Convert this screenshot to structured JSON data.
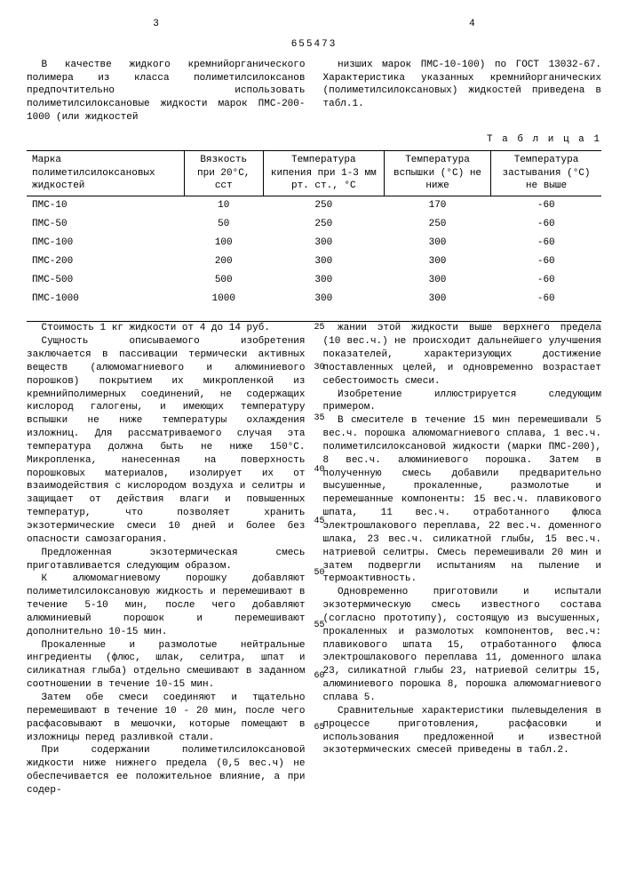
{
  "header": {
    "page_left": "3",
    "doc_number": "655473",
    "page_right": "4"
  },
  "intro_left": "В качестве жидкого кремнийорганического полимера из класса полиметилсилоксанов предпочтительно использовать полиметилсилоксановые жидкости марок ПМС-200-1000 (или жидкостей",
  "intro_right": "низших марок ПМС-10-100) по ГОСТ 13032-67. Характеристика указанных кремнийорганических (полиметилсилоксановых) жидкостей приведена в табл.1.",
  "table_caption": "Т а б л и ц а 1",
  "table": {
    "headers": [
      "Марка полиметилсилоксановых жидкостей",
      "Вязкость при 20°С, сст",
      "Температура кипения при 1-3 мм рт. ст., °С",
      "Температура вспышки (°С) не ниже",
      "Температура застывания (°С) не выше"
    ],
    "rows": [
      [
        "ПМС-10",
        "10",
        "250",
        "170",
        "-60"
      ],
      [
        "ПМС-50",
        "50",
        "250",
        "250",
        "-60"
      ],
      [
        "ПМС-100",
        "100",
        "300",
        "300",
        "-60"
      ],
      [
        "ПМС-200",
        "200",
        "300",
        "300",
        "-60"
      ],
      [
        "ПМС-500",
        "500",
        "300",
        "300",
        "-60"
      ],
      [
        "ПМС-1000",
        "1000",
        "300",
        "300",
        "-60"
      ]
    ]
  },
  "gutter_nums": [
    "25",
    "30",
    "35",
    "40",
    "45",
    "50",
    "55",
    "60",
    "65"
  ],
  "left_col": {
    "p1": "Стоимость 1 кг жидкости от 4 до 14 руб.",
    "p2": "Сущность описываемого изобретения заключается в пассивации термически активных веществ (алюмомагниевого и алюминиевого порошков) покрытием их микропленкой из кремнийполимерных соединений, не содержащих кислород галогены, и имеющих температуру вспышки не ниже температуры охлаждения изложниц. Для рассматриваемого случая эта температура должна быть не ниже 150°С. Микропленка, нанесенная на поверхность порошковых материалов, изолирует их от взаимодействия с кислородом воздуха и селитры и защищает от действия влаги и повышенных температур, что позволяет хранить экзотермические смеси 10 дней и более без опасности самозагорания.",
    "p3": "Предложенная экзотермическая смесь приготавливается следующим образом.",
    "p4": "К алюмомагниевому порошку добавляют полиметилсилоксановую жидкость и перемешивают в течение 5-10 мин, после чего добавляют алюминиевый порошок и перемешивают дополнительно 10-15 мин.",
    "p5": "Прокаленные и размолотые нейтральные ингредиенты (флюс, шлак, селитра, шпат и силикатная глыба) отдельно смешивают в заданном соотношении в течение 10-15 мин.",
    "p6": "Затем обе смеси соединяют и тщательно перемешивают в течение 10 - 20 мин, после чего расфасовывают в мешочки, которые помещают в изложницы перед разливкой стали.",
    "p7": "При содержании полиметилсилоксановой жидкости ниже нижнего предела (0,5 вес.ч) не обеспечивается ее положительное влияние, а при содер-"
  },
  "right_col": {
    "p1": "жании этой жидкости выше верхнего предела (10 вес.ч.) не происходит дальнейшего улучшения показателей, характеризующих достижение поставленных целей, и одновременно возрастает себестоимость смеси.",
    "p2": "Изобретение иллюстрируется следующим примером.",
    "p3": "В смесителе в течение 15 мин перемешивали 5 вес.ч. порошка алюмомагниевого сплава, 1 вес.ч. полиметилсилоксановой жидкости (марки ПМС-200), 8 вес.ч. алюминиевого порошка. Затем в полученную смесь добавили предварительно высушенные, прокаленные, размолотые и перемешанные компоненты: 15 вес.ч. плавикового шпата, 11 вес.ч. отработанного флюса электрошлакового переплава, 22 вес.ч. доменного шлака, 23 вес.ч. силикатной глыбы, 15 вес.ч. натриевой селитры. Смесь перемешивали 20 мин и затем подвергли испытаниям на пыление и термоактивность.",
    "p4": "Одновременно приготовили и испытали экзотермическую смесь известного состава (согласно прототипу), состоящую из высушенных, прокаленных и размолотых компонентов, вес.ч: плавикового шпата 15, отработанного флюса электрошлакового переплава 11, доменного шлака 23, силикатной глыбы 23, натриевой селитры 15, алюминиевого порошка 8, порошка алюмомагниевого сплава 5.",
    "p5": "Сравнительные характеристики пылевыделения в процессе приготовления, расфасовки и использования предложенной и известной экзотермических смесей приведены в табл.2."
  }
}
